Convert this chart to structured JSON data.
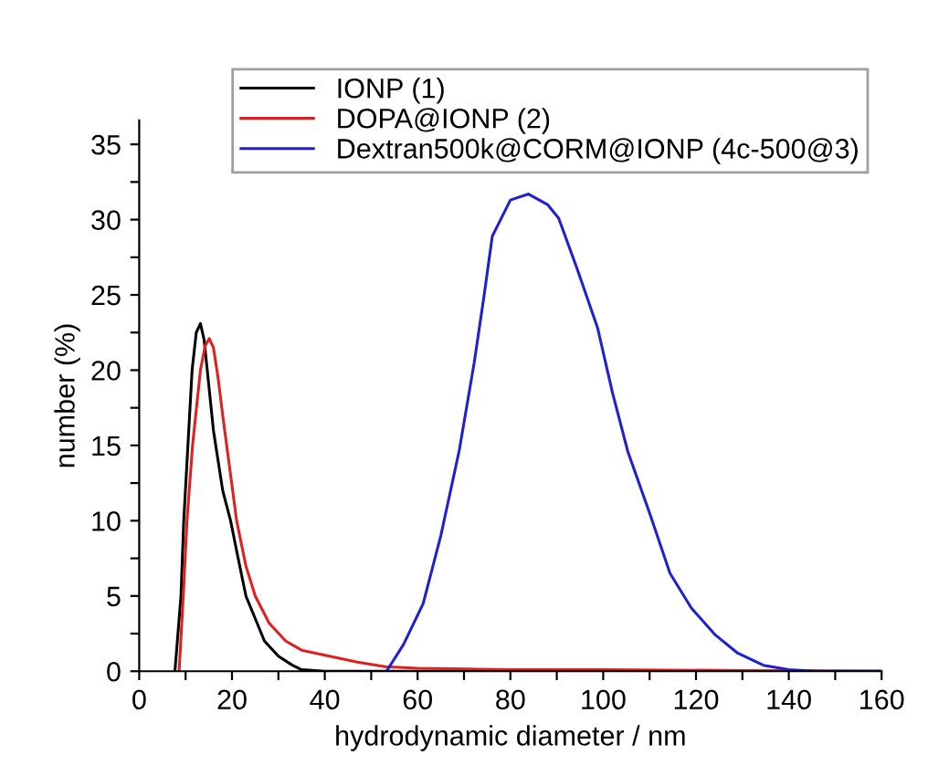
{
  "chart_data": {
    "type": "line",
    "xlabel": "hydrodynamic diameter / nm",
    "ylabel": "number (%)",
    "xlim": [
      0,
      160
    ],
    "ylim": [
      0,
      36.6
    ],
    "xticks": [
      0,
      {
        "value": 10,
        "label": null
      },
      20,
      {
        "value": 30,
        "label": null
      },
      40,
      {
        "value": 50,
        "label": null
      },
      60,
      {
        "value": 70,
        "label": null
      },
      80,
      {
        "value": 90,
        "label": null
      },
      100,
      {
        "value": 110,
        "label": null
      },
      120,
      {
        "value": 130,
        "label": null
      },
      140,
      {
        "value": 150,
        "label": null
      },
      160
    ],
    "yticks": [
      0,
      {
        "value": 2.5,
        "label": null
      },
      5,
      {
        "value": 7.5,
        "label": null
      },
      10,
      {
        "value": 12.5,
        "label": null
      },
      15,
      {
        "value": 17.5,
        "label": null
      },
      20,
      {
        "value": 22.5,
        "label": null
      },
      25,
      {
        "value": 27.5,
        "label": null
      },
      30,
      {
        "value": 32.5,
        "label": null
      },
      35
    ],
    "grid": false,
    "legend": "top",
    "marker": "none",
    "line_style": "solid",
    "series": [
      {
        "name": "IONP (1)",
        "color": "#000000",
        "x": [
          7.7,
          9,
          9.6,
          10.5,
          11.4,
          12.3,
          13.2,
          14,
          15,
          16,
          17,
          18,
          19.7,
          21,
          23,
          25,
          27,
          30,
          33,
          35,
          40,
          60,
          100,
          160
        ],
        "values": [
          0,
          5,
          10,
          15,
          20,
          22.5,
          23.1,
          22,
          19,
          16,
          14,
          12,
          10,
          8,
          5,
          3.5,
          2,
          1,
          0.4,
          0.1,
          0,
          0,
          0,
          0
        ]
      },
      {
        "name": "DOPA@IONP (2)",
        "color": "#e02020",
        "x": [
          8.6,
          9.5,
          10.3,
          11.5,
          13.2,
          14.2,
          15.1,
          16,
          17,
          18,
          19.5,
          21,
          23,
          25,
          28,
          31.6,
          35,
          41,
          47,
          53,
          60,
          80,
          100,
          130,
          160
        ],
        "values": [
          0,
          5,
          10,
          15,
          20,
          21.6,
          22.1,
          21.5,
          19.5,
          17,
          13.5,
          10,
          7,
          5,
          3.2,
          2,
          1.4,
          1,
          0.6,
          0.3,
          0.2,
          0.1,
          0.1,
          0.05,
          0
        ]
      },
      {
        "name": "Dextran500k@CORM@IONP (4c-500@3)",
        "color": "#2020d0",
        "x": [
          53.3,
          57,
          61.2,
          65,
          69,
          72.2,
          74.3,
          76.1,
          80,
          83.9,
          88,
          90.4,
          94.3,
          98.8,
          102,
          105.3,
          110,
          114.4,
          119,
          124.2,
          129,
          134.5,
          140,
          146,
          160
        ],
        "values": [
          0,
          1.8,
          4.5,
          9,
          14.7,
          20.5,
          24.9,
          28.9,
          31.3,
          31.7,
          31,
          30.1,
          26.8,
          22.8,
          18.5,
          14.6,
          10.5,
          6.5,
          4.2,
          2.4,
          1.2,
          0.4,
          0.1,
          0,
          0
        ]
      }
    ]
  }
}
